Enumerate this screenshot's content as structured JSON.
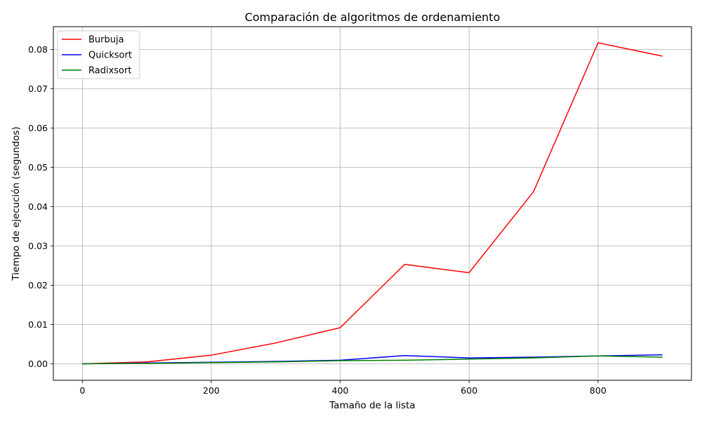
{
  "chart_data": {
    "type": "line",
    "title": "Comparación de algoritmos de ordenamiento",
    "xlabel": "Tamaño de la lista",
    "ylabel": "Tiempo de ejecución (segundos)",
    "xlim": [
      -45,
      945
    ],
    "ylim": [
      -0.0042,
      0.0858
    ],
    "x_ticks": [
      0,
      200,
      400,
      600,
      800
    ],
    "x_tick_labels": [
      "0",
      "200",
      "400",
      "600",
      "800"
    ],
    "y_ticks": [
      0.0,
      0.01,
      0.02,
      0.03,
      0.04,
      0.05,
      0.06,
      0.07,
      0.08
    ],
    "y_tick_labels": [
      "0.00",
      "0.01",
      "0.02",
      "0.03",
      "0.04",
      "0.05",
      "0.06",
      "0.07",
      "0.08"
    ],
    "grid": true,
    "legend_position": "top-left",
    "x": [
      0,
      100,
      200,
      300,
      400,
      500,
      600,
      700,
      800,
      900
    ],
    "series": [
      {
        "name": "Burbuja",
        "color": "#ff0000",
        "values": [
          0.0,
          0.0005,
          0.0022,
          0.0053,
          0.0092,
          0.0253,
          0.0232,
          0.0438,
          0.0817,
          0.0783
        ]
      },
      {
        "name": "Quicksort",
        "color": "#0000ff",
        "values": [
          0.0,
          0.0002,
          0.0004,
          0.0006,
          0.0009,
          0.0021,
          0.0015,
          0.0017,
          0.002,
          0.0023
        ]
      },
      {
        "name": "Radixsort",
        "color": "#008000",
        "values": [
          0.0,
          0.0001,
          0.0003,
          0.0005,
          0.0008,
          0.0009,
          0.0012,
          0.0015,
          0.002,
          0.0017
        ]
      }
    ]
  }
}
